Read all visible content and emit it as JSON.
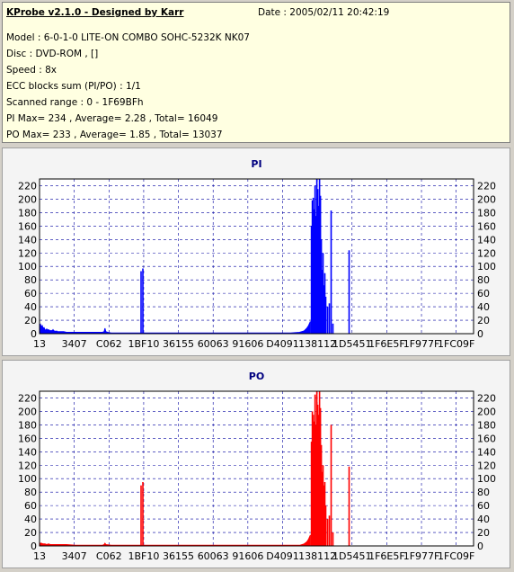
{
  "header": {
    "title": "KProbe v2.1.0 - Designed by Karr",
    "date": "Date : 2005/02/11 20:42:19",
    "model": "Model : 6-0-1-0 LITE-ON COMBO SOHC-5232K NK07",
    "disc": "Disc : DVD-ROM ,  []",
    "speed": "Speed : 8x",
    "ecc": "ECC blocks sum (PI/PO) : 1/1",
    "range": "Scanned range : 0 - 1F69BFh",
    "pi_stats": "PI Max= 234 , Average= 2.28 , Total= 16049",
    "po_stats": "PO Max= 233 , Average= 1.85 , Total= 13037"
  },
  "chart_data": [
    {
      "type": "bar",
      "title": "PI",
      "color": "#0000ff",
      "ylim": [
        0,
        230
      ],
      "yticks": [
        0,
        20,
        40,
        60,
        80,
        100,
        120,
        140,
        160,
        180,
        200,
        220
      ],
      "xtick_labels": [
        "13",
        "3407",
        "C062",
        "1BF10",
        "36155",
        "60063",
        "91606",
        "D4091",
        "138112",
        "1D5451",
        "1F6E5F",
        "1F977F",
        "1FC09F"
      ],
      "grid": true,
      "baseline": [
        [
          0,
          12
        ],
        [
          1,
          14
        ],
        [
          2,
          10
        ],
        [
          3,
          12
        ],
        [
          4,
          8
        ],
        [
          5,
          9
        ],
        [
          6,
          6
        ],
        [
          7,
          5
        ],
        [
          8,
          7
        ],
        [
          9,
          5
        ],
        [
          10,
          6
        ],
        [
          11,
          5
        ],
        [
          12,
          4
        ],
        [
          13,
          5
        ],
        [
          14,
          4
        ],
        [
          15,
          6
        ],
        [
          16,
          4
        ],
        [
          17,
          4
        ],
        [
          18,
          3
        ],
        [
          19,
          4
        ],
        [
          20,
          3
        ],
        [
          22,
          3
        ],
        [
          24,
          3
        ],
        [
          27,
          3
        ],
        [
          30,
          2
        ],
        [
          35,
          2
        ],
        [
          40,
          2
        ],
        [
          45,
          2
        ],
        [
          50,
          2
        ],
        [
          55,
          2
        ],
        [
          60,
          2
        ],
        [
          65,
          2
        ],
        [
          70,
          2
        ],
        [
          72,
          3
        ],
        [
          73,
          8
        ],
        [
          74,
          3
        ],
        [
          76,
          2
        ],
        [
          80,
          1
        ],
        [
          90,
          1
        ],
        [
          100,
          1
        ],
        [
          110,
          1
        ],
        [
          120,
          1
        ],
        [
          130,
          1
        ],
        [
          140,
          1
        ],
        [
          150,
          1
        ],
        [
          160,
          1
        ],
        [
          170,
          1
        ],
        [
          180,
          1
        ],
        [
          190,
          1
        ],
        [
          200,
          1
        ],
        [
          210,
          1
        ],
        [
          220,
          1
        ],
        [
          230,
          1
        ],
        [
          240,
          1
        ],
        [
          250,
          1
        ],
        [
          260,
          1
        ],
        [
          270,
          1
        ],
        [
          280,
          1
        ],
        [
          290,
          2
        ],
        [
          295,
          4
        ],
        [
          298,
          8
        ],
        [
          300,
          12
        ],
        [
          302,
          18
        ]
      ],
      "spikes": [
        [
          113,
          93
        ],
        [
          115,
          97
        ],
        [
          303,
          160
        ],
        [
          304,
          198
        ],
        [
          305,
          202
        ],
        [
          306,
          185
        ],
        [
          307,
          220
        ],
        [
          308,
          175
        ],
        [
          309,
          233
        ],
        [
          310,
          215
        ],
        [
          311,
          190
        ],
        [
          312,
          234
        ],
        [
          313,
          205
        ],
        [
          314,
          140
        ],
        [
          315,
          95
        ],
        [
          316,
          120
        ],
        [
          317,
          72
        ],
        [
          318,
          90
        ],
        [
          319,
          55
        ],
        [
          321,
          40
        ],
        [
          323,
          45
        ],
        [
          325,
          183
        ],
        [
          327,
          15
        ],
        [
          345,
          124
        ]
      ]
    },
    {
      "type": "bar",
      "title": "PO",
      "color": "#ff0000",
      "ylim": [
        0,
        230
      ],
      "yticks": [
        0,
        20,
        40,
        60,
        80,
        100,
        120,
        140,
        160,
        180,
        200,
        220
      ],
      "xtick_labels": [
        "13",
        "3407",
        "C062",
        "1BF10",
        "36155",
        "60063",
        "91606",
        "D4091",
        "138112",
        "1D5451",
        "1F6E5F",
        "1F977F",
        "1FC09F"
      ],
      "grid": true,
      "baseline": [
        [
          0,
          4
        ],
        [
          2,
          4
        ],
        [
          4,
          3
        ],
        [
          6,
          3
        ],
        [
          8,
          2
        ],
        [
          10,
          3
        ],
        [
          12,
          2
        ],
        [
          14,
          2
        ],
        [
          16,
          2
        ],
        [
          18,
          2
        ],
        [
          20,
          2
        ],
        [
          30,
          2
        ],
        [
          40,
          1
        ],
        [
          50,
          1
        ],
        [
          60,
          1
        ],
        [
          70,
          1
        ],
        [
          72,
          2
        ],
        [
          73,
          4
        ],
        [
          74,
          2
        ],
        [
          80,
          1
        ],
        [
          100,
          1
        ],
        [
          120,
          1
        ],
        [
          140,
          1
        ],
        [
          160,
          1
        ],
        [
          180,
          1
        ],
        [
          200,
          1
        ],
        [
          220,
          1
        ],
        [
          240,
          1
        ],
        [
          260,
          1
        ],
        [
          280,
          1
        ],
        [
          290,
          1
        ],
        [
          295,
          3
        ],
        [
          298,
          6
        ],
        [
          300,
          10
        ],
        [
          302,
          16
        ]
      ],
      "spikes": [
        [
          113,
          90
        ],
        [
          115,
          95
        ],
        [
          303,
          155
        ],
        [
          304,
          200
        ],
        [
          305,
          195
        ],
        [
          306,
          185
        ],
        [
          307,
          225
        ],
        [
          308,
          180
        ],
        [
          309,
          233
        ],
        [
          310,
          210
        ],
        [
          311,
          195
        ],
        [
          312,
          233
        ],
        [
          313,
          205
        ],
        [
          314,
          150
        ],
        [
          315,
          110
        ],
        [
          316,
          120
        ],
        [
          317,
          90
        ],
        [
          318,
          95
        ],
        [
          319,
          60
        ],
        [
          321,
          40
        ],
        [
          323,
          45
        ],
        [
          325,
          180
        ],
        [
          327,
          20
        ],
        [
          345,
          118
        ]
      ]
    }
  ]
}
